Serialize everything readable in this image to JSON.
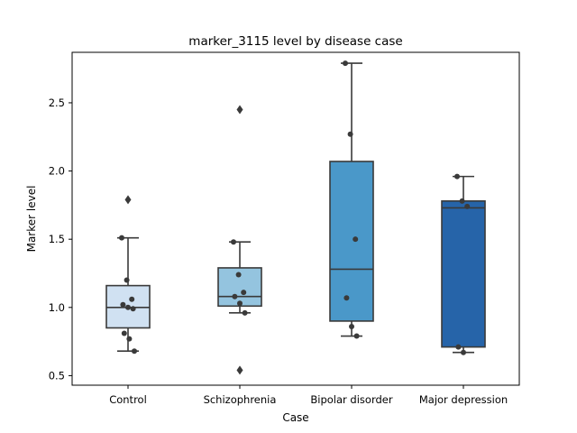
{
  "chart_data": {
    "type": "box",
    "title": "marker_3115 level by disease case",
    "xlabel": "Case",
    "ylabel": "Marker level",
    "ylim": [
      0.43,
      2.87
    ],
    "yticks": [
      "0.5",
      "1.0",
      "1.5",
      "2.0",
      "2.5"
    ],
    "categories": [
      "Control",
      "Schizophrenia",
      "Bipolar disorder",
      "Major depression"
    ],
    "colors": [
      "#d0e1f2",
      "#94c4df",
      "#4a98c9",
      "#2664a9"
    ],
    "edge_color": "#3a3a3a",
    "point_color": "#3a3a3a",
    "boxes": [
      {
        "category": "Control",
        "whisker_low": 0.68,
        "q1": 0.85,
        "median": 1.0,
        "q3": 1.16,
        "whisker_high": 1.51,
        "outliers": [
          1.79
        ]
      },
      {
        "category": "Schizophrenia",
        "whisker_low": 0.96,
        "q1": 1.01,
        "median": 1.08,
        "q3": 1.29,
        "whisker_high": 1.48,
        "outliers": [
          2.45,
          0.54
        ]
      },
      {
        "category": "Bipolar disorder",
        "whisker_low": 0.79,
        "q1": 0.9,
        "median": 1.28,
        "q3": 2.07,
        "whisker_high": 2.79,
        "outliers": []
      },
      {
        "category": "Major depression",
        "whisker_low": 0.67,
        "q1": 0.71,
        "median": 1.73,
        "q3": 1.78,
        "whisker_high": 1.96,
        "outliers": []
      }
    ],
    "points": [
      {
        "category": "Control",
        "values": [
          1.51,
          1.2,
          1.06,
          1.02,
          1.0,
          0.99,
          0.81,
          0.77,
          0.68
        ]
      },
      {
        "category": "Schizophrenia",
        "values": [
          1.48,
          1.24,
          1.11,
          1.08,
          1.03,
          0.96
        ]
      },
      {
        "category": "Bipolar disorder",
        "values": [
          2.79,
          2.27,
          1.5,
          1.07,
          0.86,
          0.79
        ]
      },
      {
        "category": "Major depression",
        "values": [
          1.96,
          1.78,
          1.74,
          0.71,
          0.67
        ]
      }
    ]
  }
}
